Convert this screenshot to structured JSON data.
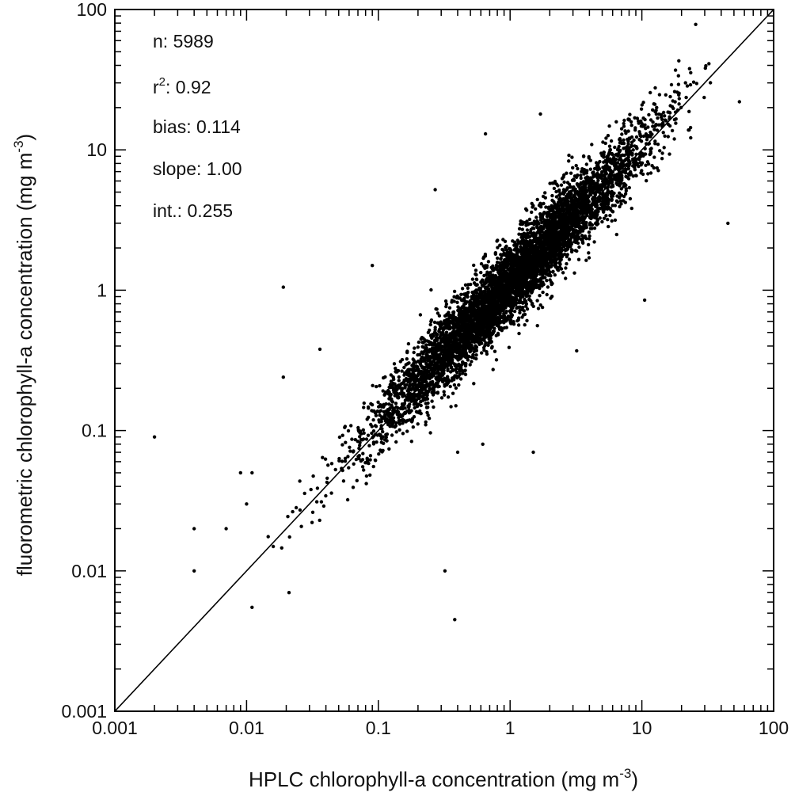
{
  "chart_data": {
    "type": "scatter",
    "xscale": "log",
    "yscale": "log",
    "xlim": [
      0.001,
      100
    ],
    "ylim": [
      0.001,
      100
    ],
    "xlabel": {
      "text": "HPLC chlorophyll-a concentration (mg m",
      "sup": "-3",
      "tail": ")"
    },
    "ylabel": {
      "text": "fluorometric chlorophyll-a concentration (mg m",
      "sup": "-3",
      "tail": ")"
    },
    "x_tick_labels": [
      "0.001",
      "0.01",
      "0.1",
      "1",
      "10",
      "100"
    ],
    "y_tick_labels": [
      "0.001",
      "0.01",
      "0.1",
      "1",
      "10",
      "100"
    ],
    "x_ticks": [
      0.001,
      0.01,
      0.1,
      1,
      10,
      100
    ],
    "y_ticks": [
      0.001,
      0.01,
      0.1,
      1,
      10,
      100
    ],
    "grid": false,
    "reference_line": {
      "type": "1:1",
      "from": [
        0.001,
        0.001
      ],
      "to": [
        100,
        100
      ]
    },
    "stats": {
      "n": {
        "label": "n: ",
        "value": "5989"
      },
      "r2": {
        "label": "r",
        "sup": "2",
        "tail": ": ",
        "value": "0.92"
      },
      "bias": {
        "label": "bias: ",
        "value": "0.114"
      },
      "slope": {
        "label": "slope: ",
        "value": "1.00"
      },
      "int": {
        "label": "int.: ",
        "value": "0.255"
      }
    },
    "n_points": 5989,
    "outliers": [
      [
        0.002,
        0.09
      ],
      [
        0.004,
        0.02
      ],
      [
        0.004,
        0.01
      ],
      [
        0.009,
        0.05
      ],
      [
        0.01,
        0.03
      ],
      [
        0.011,
        0.0055
      ],
      [
        0.019,
        1.05
      ],
      [
        0.019,
        0.24
      ],
      [
        0.021,
        0.007
      ],
      [
        0.036,
        0.38
      ],
      [
        0.32,
        0.01
      ],
      [
        0.38,
        0.0045
      ],
      [
        0.27,
        5.2
      ],
      [
        0.65,
        13
      ],
      [
        0.62,
        0.08
      ],
      [
        1.5,
        0.07
      ],
      [
        3.2,
        0.37
      ],
      [
        10.5,
        0.85
      ],
      [
        45,
        3.0
      ],
      [
        55,
        22
      ],
      [
        1.7,
        18
      ],
      [
        0.4,
        0.07
      ],
      [
        0.09,
        1.5
      ],
      [
        0.011,
        0.05
      ],
      [
        0.007,
        0.02
      ]
    ]
  }
}
